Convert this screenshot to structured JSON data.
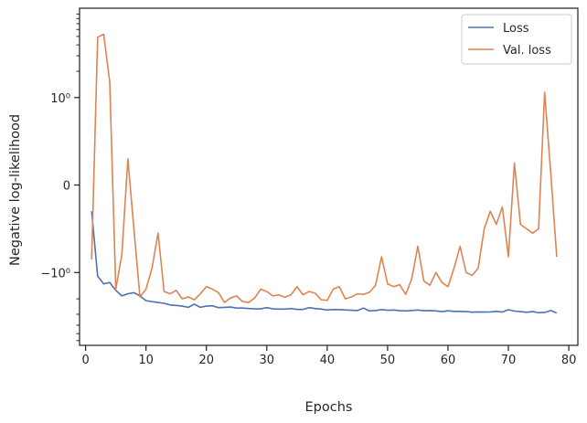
{
  "chart_data": {
    "type": "line",
    "xlabel": "Epochs",
    "ylabel": "Negative log-likelihood",
    "xlim": [
      -1,
      81.5
    ],
    "ylim": [
      -6.8,
      10.5
    ],
    "yscale": "symlog",
    "xticks": [
      0,
      10,
      20,
      30,
      40,
      50,
      60,
      70,
      80
    ],
    "xtick_labels": [
      "0",
      "10",
      "20",
      "30",
      "40",
      "50",
      "60",
      "70",
      "80"
    ],
    "yticks": [
      1,
      0,
      -1
    ],
    "ytick_labels": [
      "10⁰",
      "0",
      "−10⁰"
    ],
    "grid": false,
    "legend_position": "top-right",
    "x": [
      1,
      2,
      3,
      4,
      5,
      6,
      7,
      8,
      9,
      10,
      11,
      12,
      13,
      14,
      15,
      16,
      17,
      18,
      19,
      20,
      21,
      22,
      23,
      24,
      25,
      26,
      27,
      28,
      29,
      30,
      31,
      32,
      33,
      34,
      35,
      36,
      37,
      38,
      39,
      40,
      41,
      42,
      43,
      44,
      45,
      46,
      47,
      48,
      49,
      50,
      51,
      52,
      53,
      54,
      55,
      56,
      57,
      58,
      59,
      60,
      61,
      62,
      63,
      64,
      65,
      66,
      67,
      68,
      69,
      70,
      71,
      72,
      73,
      74,
      75,
      76,
      77,
      78
    ],
    "series": [
      {
        "name": "Loss",
        "color": "#4c72b0",
        "values": [
          -0.3,
          -1.1,
          -1.35,
          -1.3,
          -1.6,
          -1.85,
          -1.75,
          -1.7,
          -1.85,
          -2.1,
          -2.15,
          -2.2,
          -2.25,
          -2.35,
          -2.38,
          -2.42,
          -2.5,
          -2.3,
          -2.5,
          -2.42,
          -2.4,
          -2.52,
          -2.5,
          -2.48,
          -2.55,
          -2.55,
          -2.58,
          -2.6,
          -2.6,
          -2.52,
          -2.6,
          -2.62,
          -2.62,
          -2.58,
          -2.64,
          -2.64,
          -2.52,
          -2.58,
          -2.62,
          -2.68,
          -2.65,
          -2.66,
          -2.68,
          -2.7,
          -2.72,
          -2.55,
          -2.75,
          -2.72,
          -2.66,
          -2.7,
          -2.68,
          -2.73,
          -2.75,
          -2.72,
          -2.68,
          -2.74,
          -2.72,
          -2.75,
          -2.8,
          -2.74,
          -2.78,
          -2.78,
          -2.8,
          -2.84,
          -2.82,
          -2.83,
          -2.82,
          -2.78,
          -2.83,
          -2.66,
          -2.76,
          -2.8,
          -2.85,
          -2.8,
          -2.88,
          -2.86,
          -2.72,
          -2.9
        ]
      },
      {
        "name": "Val. loss",
        "color": "#dd8452",
        "values": [
          -0.85,
          4.9,
          5.3,
          1.5,
          -1.55,
          -0.8,
          0.3,
          -0.5,
          -1.9,
          -1.55,
          -0.95,
          -0.55,
          -1.65,
          -1.75,
          -1.6,
          -2.0,
          -1.9,
          -2.05,
          -1.75,
          -1.45,
          -1.55,
          -1.7,
          -2.2,
          -1.95,
          -1.85,
          -2.15,
          -2.2,
          -1.95,
          -1.55,
          -1.65,
          -1.85,
          -1.8,
          -1.92,
          -1.8,
          -1.45,
          -1.8,
          -1.65,
          -1.72,
          -2.05,
          -2.08,
          -1.55,
          -1.45,
          -2.0,
          -1.9,
          -1.75,
          -1.78,
          -1.68,
          -1.4,
          -0.82,
          -1.35,
          -1.45,
          -1.38,
          -1.78,
          -1.18,
          -0.7,
          -1.25,
          -1.4,
          -1.0,
          -1.3,
          -1.45,
          -0.95,
          -0.7,
          -1.0,
          -1.08,
          -0.95,
          -0.5,
          -0.3,
          -0.45,
          -0.25,
          -0.82,
          0.25,
          -0.45,
          -0.5,
          -0.55,
          -0.5,
          1.15,
          0.15,
          -0.82
        ]
      }
    ]
  }
}
